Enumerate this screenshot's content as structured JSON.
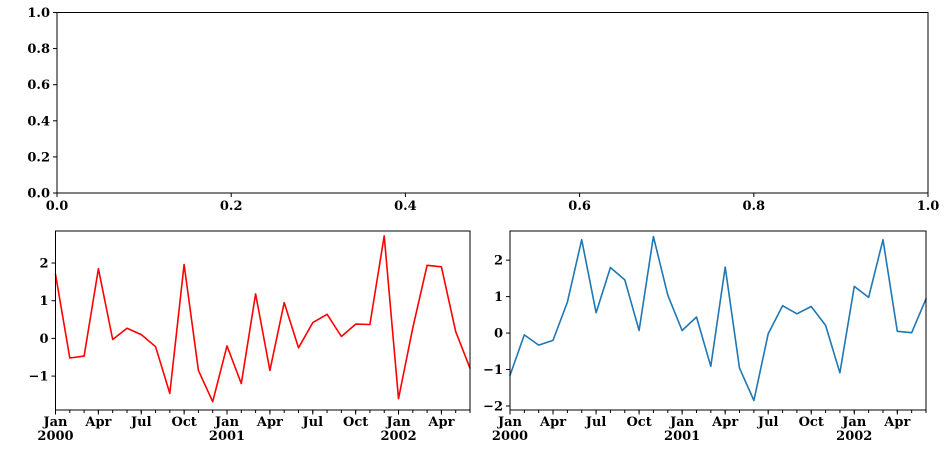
{
  "figure": {
    "background": "#ffffff",
    "axis_color": "#000000",
    "tick_label_color": "#000000"
  },
  "chart_data": [
    {
      "id": "empty-axes",
      "type": "line",
      "title": "",
      "xlabel": "",
      "ylabel": "",
      "series": [],
      "xlim": [
        0.0,
        1.0
      ],
      "ylim": [
        0.0,
        1.0
      ],
      "xticks": [
        0.0,
        0.2,
        0.4,
        0.6,
        0.8,
        1.0
      ],
      "yticks": [
        0.0,
        0.2,
        0.4,
        0.6,
        0.8,
        1.0
      ],
      "tick_format": "one_decimal",
      "grid": false,
      "legend": "none",
      "note": "empty axes with no plotted data"
    },
    {
      "id": "red-monthly-line",
      "type": "line",
      "title": "",
      "xlabel": "",
      "ylabel": "",
      "line_color": "#ff0000",
      "months": [
        "Jan 2000",
        "Feb 2000",
        "Mar 2000",
        "Apr 2000",
        "May 2000",
        "Jun 2000",
        "Jul 2000",
        "Aug 2000",
        "Sep 2000",
        "Oct 2000",
        "Nov 2000",
        "Dec 2000",
        "Jan 2001",
        "Feb 2001",
        "Mar 2001",
        "Apr 2001",
        "May 2001",
        "Jun 2001",
        "Jul 2001",
        "Aug 2001",
        "Sep 2001",
        "Oct 2001",
        "Nov 2001",
        "Dec 2001",
        "Jan 2002",
        "Feb 2002",
        "Mar 2002",
        "Apr 2002",
        "May 2002",
        "Jun 2002"
      ],
      "values": [
        1.7,
        -0.52,
        -0.47,
        1.85,
        -0.03,
        0.27,
        0.1,
        -0.22,
        -1.46,
        1.96,
        -0.85,
        -1.68,
        -0.2,
        -1.2,
        1.18,
        -0.85,
        0.95,
        -0.25,
        0.42,
        0.64,
        0.05,
        0.38,
        0.37,
        2.72,
        -1.6,
        0.28,
        1.94,
        1.9,
        0.18,
        -0.79
      ],
      "ylim": [
        -1.9,
        2.85
      ],
      "yticks": [
        -1,
        0,
        1,
        2
      ],
      "x_major_ticks": [
        {
          "index": 0,
          "lines": [
            "Jan",
            "2000"
          ]
        },
        {
          "index": 3,
          "lines": [
            "Apr"
          ]
        },
        {
          "index": 6,
          "lines": [
            "Jul"
          ]
        },
        {
          "index": 9,
          "lines": [
            "Oct"
          ]
        },
        {
          "index": 12,
          "lines": [
            "Jan",
            "2001"
          ]
        },
        {
          "index": 15,
          "lines": [
            "Apr"
          ]
        },
        {
          "index": 18,
          "lines": [
            "Jul"
          ]
        },
        {
          "index": 21,
          "lines": [
            "Oct"
          ]
        },
        {
          "index": 24,
          "lines": [
            "Jan",
            "2002"
          ]
        },
        {
          "index": 27,
          "lines": [
            "Apr"
          ]
        }
      ],
      "minor_tick_every_month": true,
      "tick_format": "integer",
      "grid": false,
      "legend": "none"
    },
    {
      "id": "blue-monthly-line",
      "type": "line",
      "title": "",
      "xlabel": "",
      "ylabel": "",
      "line_color": "#1f77b4",
      "months": [
        "Jan 2000",
        "Feb 2000",
        "Mar 2000",
        "Apr 2000",
        "May 2000",
        "Jun 2000",
        "Jul 2000",
        "Aug 2000",
        "Sep 2000",
        "Oct 2000",
        "Nov 2000",
        "Dec 2000",
        "Jan 2001",
        "Feb 2001",
        "Mar 2001",
        "Apr 2001",
        "May 2001",
        "Jun 2001",
        "Jul 2001",
        "Aug 2001",
        "Sep 2001",
        "Oct 2001",
        "Nov 2001",
        "Dec 2001",
        "Jan 2002",
        "Feb 2002",
        "Mar 2002",
        "Apr 2002",
        "May 2002",
        "Jun 2002"
      ],
      "values": [
        -1.16,
        -0.05,
        -0.33,
        -0.2,
        0.85,
        2.56,
        0.56,
        1.8,
        1.46,
        0.07,
        2.65,
        1.04,
        0.07,
        0.44,
        -0.91,
        1.81,
        -0.96,
        -1.85,
        -0.02,
        0.75,
        0.53,
        0.73,
        0.21,
        -1.09,
        1.28,
        0.98,
        2.56,
        0.05,
        0.01,
        0.94
      ],
      "ylim": [
        -2.11,
        2.8
      ],
      "yticks": [
        -2,
        -1,
        0,
        1,
        2
      ],
      "x_major_ticks": [
        {
          "index": 0,
          "lines": [
            "Jan",
            "2000"
          ]
        },
        {
          "index": 3,
          "lines": [
            "Apr"
          ]
        },
        {
          "index": 6,
          "lines": [
            "Jul"
          ]
        },
        {
          "index": 9,
          "lines": [
            "Oct"
          ]
        },
        {
          "index": 12,
          "lines": [
            "Jan",
            "2001"
          ]
        },
        {
          "index": 15,
          "lines": [
            "Apr"
          ]
        },
        {
          "index": 18,
          "lines": [
            "Jul"
          ]
        },
        {
          "index": 21,
          "lines": [
            "Oct"
          ]
        },
        {
          "index": 24,
          "lines": [
            "Jan",
            "2002"
          ]
        },
        {
          "index": 27,
          "lines": [
            "Apr"
          ]
        }
      ],
      "minor_tick_every_month": true,
      "tick_format": "integer",
      "grid": false,
      "legend": "none"
    }
  ]
}
